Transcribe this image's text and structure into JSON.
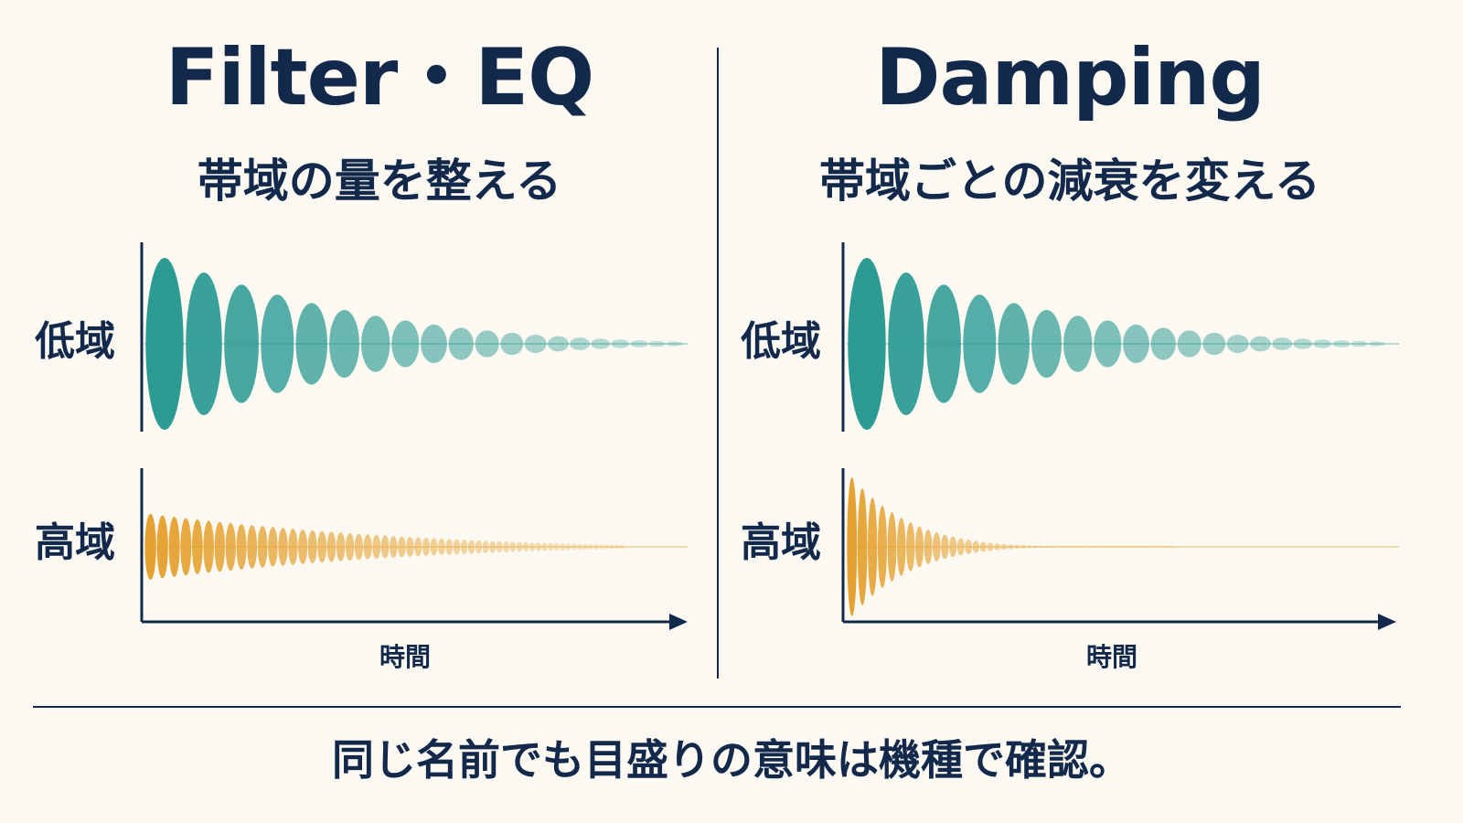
{
  "left_panel": {
    "title": "Filter・EQ",
    "subtitle": "帯域の量を整える",
    "low_label": "低域",
    "high_label": "高域",
    "axis_label": "時間"
  },
  "right_panel": {
    "title": "Damping",
    "subtitle": "帯域ごとの減衰を変える",
    "low_label": "低域",
    "high_label": "高域",
    "axis_label": "時間"
  },
  "footer": {
    "note": "同じ名前でも目盛りの意味は機種で確認。"
  },
  "colors": {
    "text": "#13294b",
    "background": "#fbf9f1",
    "low_band": "#2a9a93",
    "high_band": "#e5a232"
  },
  "waves": {
    "left": {
      "low": {
        "cycles": 12,
        "decay": "moderate"
      },
      "high": {
        "cycles": 36,
        "decay": "slow"
      }
    },
    "right": {
      "low": {
        "cycles": 12,
        "decay": "moderate"
      },
      "high": {
        "cycles": 36,
        "decay": "fast"
      }
    }
  }
}
